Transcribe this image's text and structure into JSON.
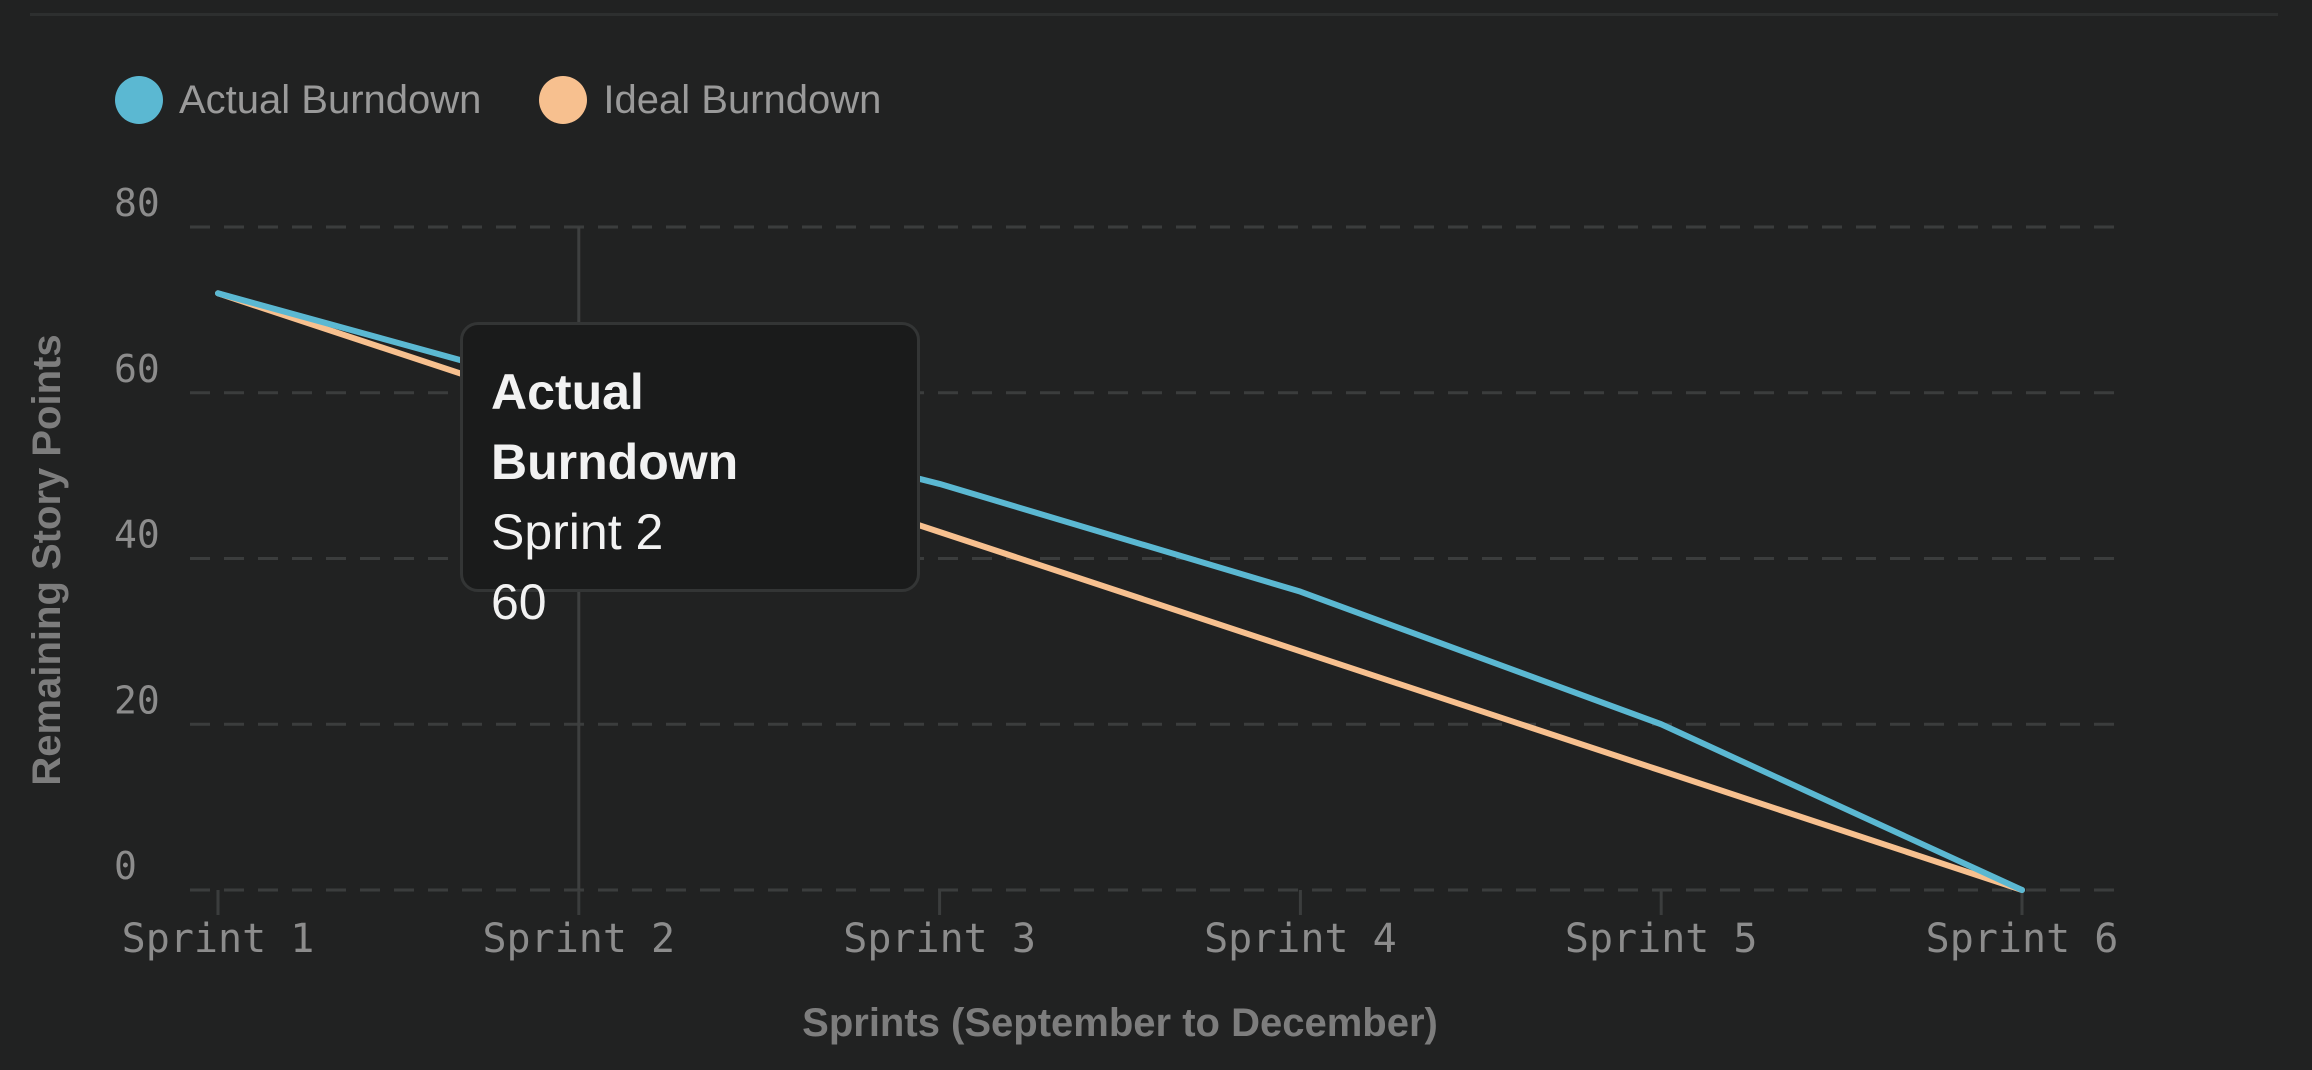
{
  "legend": {
    "items": [
      {
        "label": "Actual Burndown",
        "color": "#5bb8d2"
      },
      {
        "label": "Ideal Burndown",
        "color": "#f7c08f"
      }
    ]
  },
  "tooltip": {
    "series": "Actual Burndown",
    "category": "Sprint 2",
    "value": "60"
  },
  "chart_data": {
    "type": "line",
    "categories": [
      "Sprint 1",
      "Sprint 2",
      "Sprint 3",
      "Sprint 4",
      "Sprint 5",
      "Sprint 6"
    ],
    "series": [
      {
        "name": "Actual Burndown",
        "color": "#5bb8d2",
        "values": [
          72,
          60,
          49,
          36,
          20,
          0
        ]
      },
      {
        "name": "Ideal Burndown",
        "color": "#f7c08f",
        "values": [
          72,
          57.6,
          43.2,
          28.8,
          14.4,
          0
        ]
      }
    ],
    "xlabel": "Sprints (September to December)",
    "ylabel": "Remaining Story Points",
    "ylim": [
      0,
      80
    ],
    "yticks": [
      "0",
      "20",
      "40",
      "60",
      "80"
    ],
    "grid": "horizontal-dashed",
    "legend_position": "top-left",
    "highlighted_category": "Sprint 2"
  }
}
